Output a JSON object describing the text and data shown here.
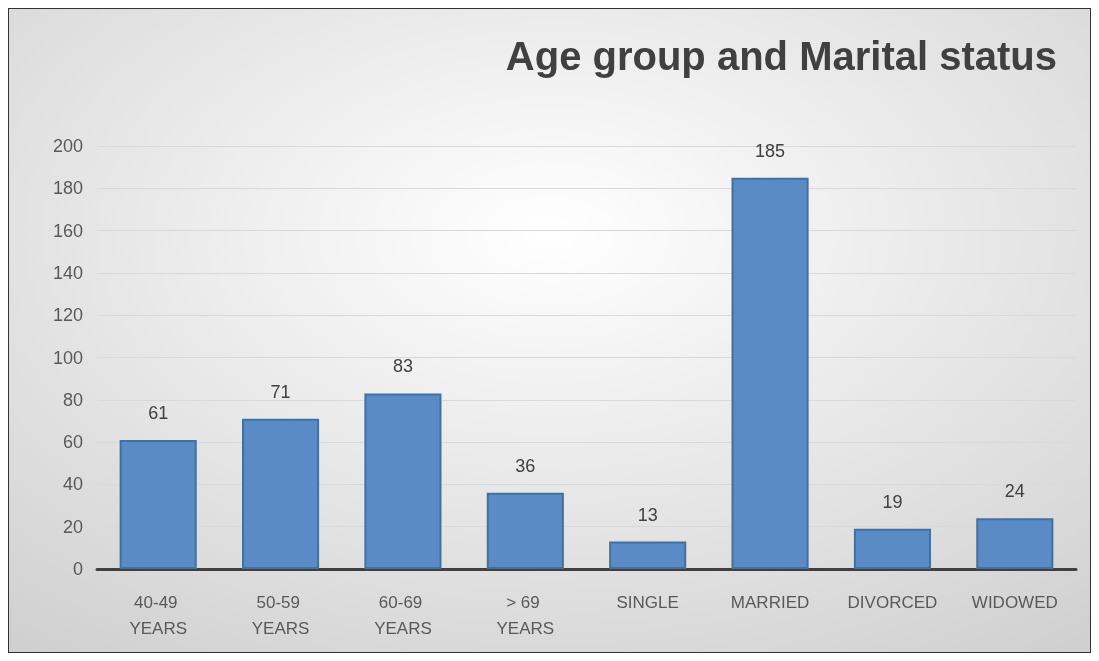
{
  "chart_data": {
    "type": "bar",
    "title": "Age group and Marital status",
    "categories": [
      "40-49 YEARS",
      "50-59 YEARS",
      "60-69 YEARS",
      "> 69 YEARS",
      "SINGLE",
      "MARRIED",
      "DIVORCED",
      "WIDOWED"
    ],
    "values": [
      61,
      71,
      83,
      36,
      13,
      185,
      19,
      24
    ],
    "color": "#5b8bc7",
    "ylim": [
      0,
      200
    ],
    "yticks": [
      0,
      20,
      40,
      60,
      80,
      100,
      120,
      140,
      160,
      180,
      200
    ],
    "grid": "y",
    "data_labels": true
  }
}
